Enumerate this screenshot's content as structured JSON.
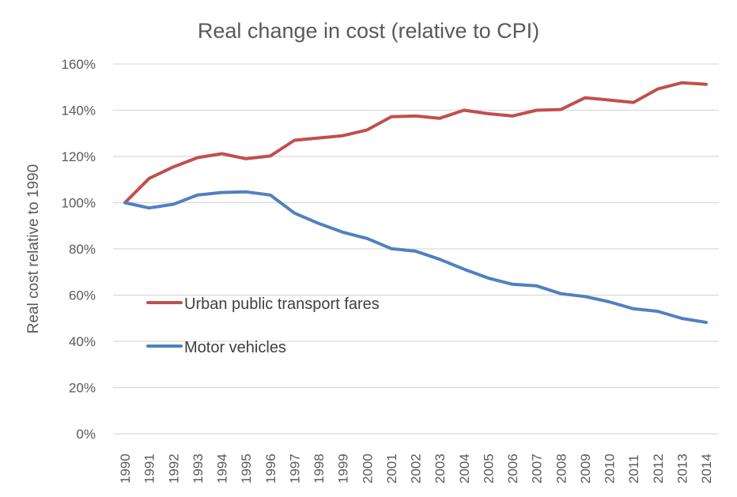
{
  "chart_data": {
    "type": "line",
    "title": "Real change in cost (relative to CPI)",
    "xlabel": "",
    "ylabel": "Real cost relative to 1990",
    "ylim": [
      0,
      160
    ],
    "yticks": [
      0,
      20,
      40,
      60,
      80,
      100,
      120,
      140,
      160
    ],
    "ytick_labels": [
      "0%",
      "20%",
      "40%",
      "60%",
      "80%",
      "100%",
      "120%",
      "140%",
      "160%"
    ],
    "grid": true,
    "legend_position": "center-left",
    "categories": [
      "1990",
      "1991",
      "1992",
      "1993",
      "1994",
      "1995",
      "1996",
      "1997",
      "1998",
      "1999",
      "2000",
      "2001",
      "2002",
      "2003",
      "2004",
      "2005",
      "2006",
      "2007",
      "2008",
      "2009",
      "2010",
      "2011",
      "2012",
      "2013",
      "2014"
    ],
    "series": [
      {
        "name": "Urban public transport fares",
        "color": "#c0504d",
        "values": [
          100,
          110.5,
          115.5,
          119.5,
          121.2,
          119,
          120.2,
          127,
          128,
          129,
          131.5,
          137.2,
          137.5,
          136.5,
          140,
          138.5,
          137.5,
          140,
          140.3,
          145.4,
          144.4,
          143.4,
          149.2,
          151.9,
          151.2
        ]
      },
      {
        "name": "Motor vehicles",
        "color": "#4f81bd",
        "values": [
          100,
          97.7,
          99.3,
          103.3,
          104.4,
          104.7,
          103.3,
          95.5,
          91,
          87.2,
          84.5,
          80.1,
          79,
          75.5,
          71.2,
          67.4,
          64.7,
          64,
          60.6,
          59.4,
          57.1,
          54.1,
          53,
          49.9,
          48.2
        ]
      }
    ]
  }
}
